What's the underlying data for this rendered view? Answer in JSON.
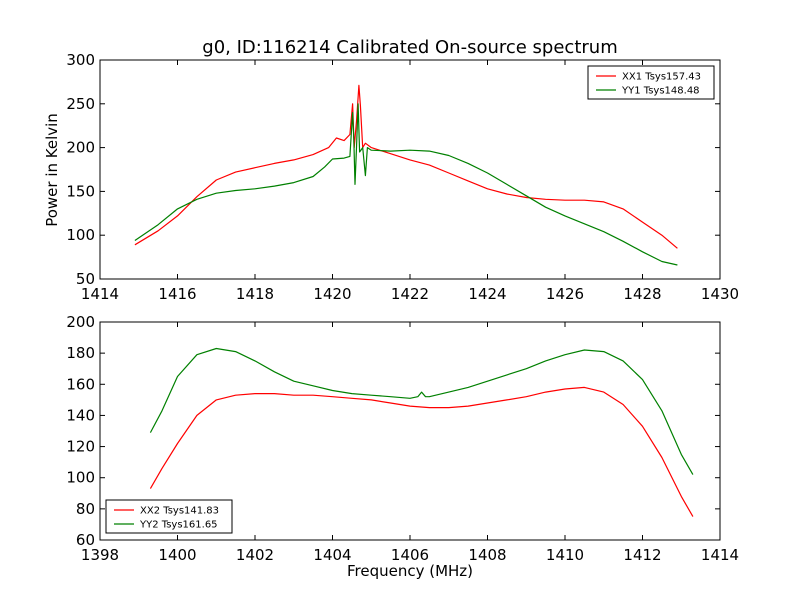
{
  "chart_data": [
    {
      "type": "line",
      "title": "g0, ID:116214 Calibrated On-source spectrum",
      "xlabel": "",
      "ylabel": "Power in Kelvin",
      "xlim": [
        1414,
        1430
      ],
      "ylim": [
        50,
        300
      ],
      "xticks": [
        1414,
        1416,
        1418,
        1420,
        1422,
        1424,
        1426,
        1428,
        1430
      ],
      "yticks": [
        50,
        100,
        150,
        200,
        250,
        300
      ],
      "legend_position": "top-right",
      "series": [
        {
          "name": "XX1 Tsys157.43",
          "color": "#ff0000",
          "points": [
            [
              1414.9,
              89
            ],
            [
              1415.5,
              105
            ],
            [
              1416.0,
              122
            ],
            [
              1416.5,
              144
            ],
            [
              1417.0,
              163
            ],
            [
              1417.5,
              172
            ],
            [
              1418.0,
              177
            ],
            [
              1418.5,
              182
            ],
            [
              1419.0,
              186
            ],
            [
              1419.5,
              192
            ],
            [
              1419.9,
              200
            ],
            [
              1420.1,
              211
            ],
            [
              1420.3,
              208
            ],
            [
              1420.45,
              215
            ],
            [
              1420.52,
              250
            ],
            [
              1420.56,
              200
            ],
            [
              1420.62,
              230
            ],
            [
              1420.68,
              271
            ],
            [
              1420.72,
              248
            ],
            [
              1420.78,
              200
            ],
            [
              1420.85,
              205
            ],
            [
              1421.0,
              200
            ],
            [
              1421.5,
              193
            ],
            [
              1422.0,
              186
            ],
            [
              1422.5,
              180
            ],
            [
              1423.0,
              171
            ],
            [
              1423.5,
              162
            ],
            [
              1424.0,
              153
            ],
            [
              1424.5,
              147
            ],
            [
              1425.0,
              143
            ],
            [
              1425.5,
              141
            ],
            [
              1426.0,
              140
            ],
            [
              1426.5,
              140
            ],
            [
              1427.0,
              138
            ],
            [
              1427.5,
              130
            ],
            [
              1428.0,
              115
            ],
            [
              1428.5,
              100
            ],
            [
              1428.9,
              85
            ]
          ]
        },
        {
          "name": "YY1 Tsys148.48",
          "color": "#008000",
          "points": [
            [
              1414.9,
              94
            ],
            [
              1415.5,
              112
            ],
            [
              1416.0,
              130
            ],
            [
              1416.5,
              141
            ],
            [
              1417.0,
              148
            ],
            [
              1417.5,
              151
            ],
            [
              1418.0,
              153
            ],
            [
              1418.5,
              156
            ],
            [
              1419.0,
              160
            ],
            [
              1419.5,
              167
            ],
            [
              1419.8,
              178
            ],
            [
              1420.0,
              187
            ],
            [
              1420.3,
              188
            ],
            [
              1420.45,
              190
            ],
            [
              1420.52,
              240
            ],
            [
              1420.55,
              210
            ],
            [
              1420.58,
              158
            ],
            [
              1420.62,
              200
            ],
            [
              1420.66,
              250
            ],
            [
              1420.7,
              195
            ],
            [
              1420.78,
              200
            ],
            [
              1420.85,
              168
            ],
            [
              1420.9,
              200
            ],
            [
              1421.0,
              197
            ],
            [
              1421.5,
              196
            ],
            [
              1422.0,
              197
            ],
            [
              1422.5,
              196
            ],
            [
              1423.0,
              191
            ],
            [
              1423.5,
              182
            ],
            [
              1424.0,
              171
            ],
            [
              1424.5,
              158
            ],
            [
              1425.0,
              145
            ],
            [
              1425.5,
              132
            ],
            [
              1426.0,
              122
            ],
            [
              1426.5,
              113
            ],
            [
              1427.0,
              104
            ],
            [
              1427.5,
              93
            ],
            [
              1428.0,
              81
            ],
            [
              1428.5,
              70
            ],
            [
              1428.9,
              66
            ]
          ]
        }
      ]
    },
    {
      "type": "line",
      "title": "",
      "xlabel": "Frequency (MHz)",
      "ylabel": "",
      "xlim": [
        1398,
        1414
      ],
      "ylim": [
        60,
        200
      ],
      "xticks": [
        1398,
        1400,
        1402,
        1404,
        1406,
        1408,
        1410,
        1412,
        1414
      ],
      "yticks": [
        60,
        80,
        100,
        120,
        140,
        160,
        180,
        200
      ],
      "legend_position": "bottom-left",
      "series": [
        {
          "name": "XX2 Tsys141.83",
          "color": "#ff0000",
          "points": [
            [
              1399.3,
              93
            ],
            [
              1399.6,
              106
            ],
            [
              1400.0,
              122
            ],
            [
              1400.5,
              140
            ],
            [
              1401.0,
              150
            ],
            [
              1401.5,
              153
            ],
            [
              1402.0,
              154
            ],
            [
              1402.5,
              154
            ],
            [
              1403.0,
              153
            ],
            [
              1403.5,
              153
            ],
            [
              1404.0,
              152
            ],
            [
              1404.5,
              151
            ],
            [
              1405.0,
              150
            ],
            [
              1405.5,
              148
            ],
            [
              1406.0,
              146
            ],
            [
              1406.5,
              145
            ],
            [
              1407.0,
              145
            ],
            [
              1407.5,
              146
            ],
            [
              1408.0,
              148
            ],
            [
              1408.5,
              150
            ],
            [
              1409.0,
              152
            ],
            [
              1409.5,
              155
            ],
            [
              1410.0,
              157
            ],
            [
              1410.5,
              158
            ],
            [
              1411.0,
              155
            ],
            [
              1411.5,
              147
            ],
            [
              1412.0,
              133
            ],
            [
              1412.5,
              113
            ],
            [
              1413.0,
              88
            ],
            [
              1413.3,
              75
            ]
          ]
        },
        {
          "name": "YY2 Tsys161.65",
          "color": "#008000",
          "points": [
            [
              1399.3,
              129
            ],
            [
              1399.6,
              143
            ],
            [
              1400.0,
              165
            ],
            [
              1400.5,
              179
            ],
            [
              1401.0,
              183
            ],
            [
              1401.5,
              181
            ],
            [
              1402.0,
              175
            ],
            [
              1402.5,
              168
            ],
            [
              1403.0,
              162
            ],
            [
              1403.5,
              159
            ],
            [
              1404.0,
              156
            ],
            [
              1404.5,
              154
            ],
            [
              1405.0,
              153
            ],
            [
              1405.5,
              152
            ],
            [
              1406.0,
              151
            ],
            [
              1406.2,
              152
            ],
            [
              1406.3,
              155
            ],
            [
              1406.4,
              152
            ],
            [
              1406.5,
              152
            ],
            [
              1407.0,
              155
            ],
            [
              1407.5,
              158
            ],
            [
              1408.0,
              162
            ],
            [
              1408.5,
              166
            ],
            [
              1409.0,
              170
            ],
            [
              1409.5,
              175
            ],
            [
              1410.0,
              179
            ],
            [
              1410.5,
              182
            ],
            [
              1411.0,
              181
            ],
            [
              1411.5,
              175
            ],
            [
              1412.0,
              163
            ],
            [
              1412.5,
              143
            ],
            [
              1413.0,
              115
            ],
            [
              1413.3,
              102
            ]
          ]
        }
      ]
    }
  ]
}
